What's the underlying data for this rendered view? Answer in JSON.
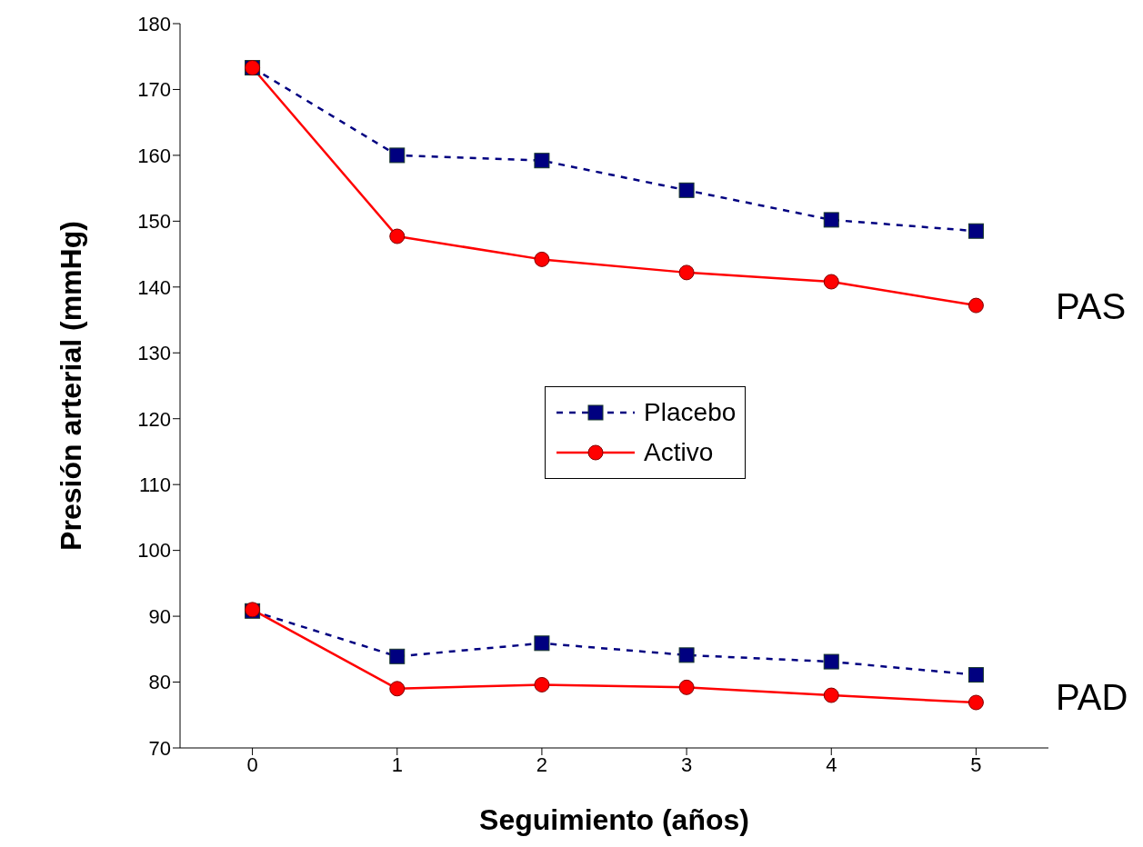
{
  "chart_data": {
    "type": "line",
    "xlabel": "Seguimiento  (años)",
    "ylabel": "Presión arterial (mmHg)",
    "categories": [
      "0",
      "1",
      "2",
      "3",
      "4",
      "5"
    ],
    "ylim": [
      70,
      180
    ],
    "yticks": [
      70,
      80,
      90,
      100,
      110,
      120,
      130,
      140,
      150,
      160,
      170,
      180
    ],
    "grid": false,
    "legend": "center",
    "series": [
      {
        "name": "Placebo",
        "color": "#000080",
        "marker": "square",
        "line_style": "dashed",
        "values": [
          173.3,
          160,
          159.2,
          154.7,
          150.2,
          148.5
        ]
      },
      {
        "name": "Activo",
        "color": "#ff0000",
        "marker": "circle",
        "line_style": "solid",
        "values": [
          173.3,
          147.7,
          144.2,
          142.2,
          140.8,
          137.2
        ]
      },
      {
        "color": "#000080",
        "marker": "square",
        "line_style": "dashed",
        "values": [
          90.8,
          83.9,
          85.9,
          84.1,
          83.1,
          81.1
        ]
      },
      {
        "color": "#ff0000",
        "marker": "circle",
        "line_style": "solid",
        "values": [
          91.0,
          79.0,
          79.6,
          79.2,
          78.0,
          76.9
        ]
      }
    ],
    "annotations": [
      "PAS",
      "PAD"
    ]
  }
}
